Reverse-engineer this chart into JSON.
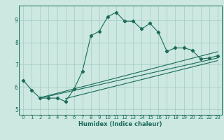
{
  "title": "",
  "xlabel": "Humidex (Indice chaleur)",
  "bg_color": "#cce8e0",
  "grid_color": "#aacfc8",
  "line_color": "#1a6b5a",
  "xlim": [
    -0.5,
    23.5
  ],
  "ylim": [
    4.75,
    9.65
  ],
  "xticks": [
    0,
    1,
    2,
    3,
    4,
    5,
    6,
    7,
    8,
    9,
    10,
    11,
    12,
    13,
    14,
    15,
    16,
    17,
    18,
    19,
    20,
    21,
    22,
    23
  ],
  "yticks": [
    5,
    6,
    7,
    8,
    9
  ],
  "main_curve_x": [
    0,
    1,
    2,
    3,
    4,
    5,
    6,
    7,
    8,
    9,
    10,
    11,
    12,
    13,
    14,
    15,
    16,
    17,
    18,
    19,
    20,
    21,
    22,
    23
  ],
  "main_curve_y": [
    6.3,
    5.85,
    5.5,
    5.5,
    5.5,
    5.35,
    5.9,
    6.7,
    8.3,
    8.5,
    9.15,
    9.35,
    8.95,
    8.95,
    8.6,
    8.85,
    8.45,
    7.6,
    7.75,
    7.75,
    7.65,
    7.25,
    7.3,
    7.4
  ],
  "line1_x": [
    2,
    23
  ],
  "line1_y": [
    5.5,
    7.3
  ],
  "line2_x": [
    2,
    23
  ],
  "line2_y": [
    5.52,
    7.58
  ],
  "line3_x": [
    5,
    23
  ],
  "line3_y": [
    5.48,
    7.18
  ]
}
